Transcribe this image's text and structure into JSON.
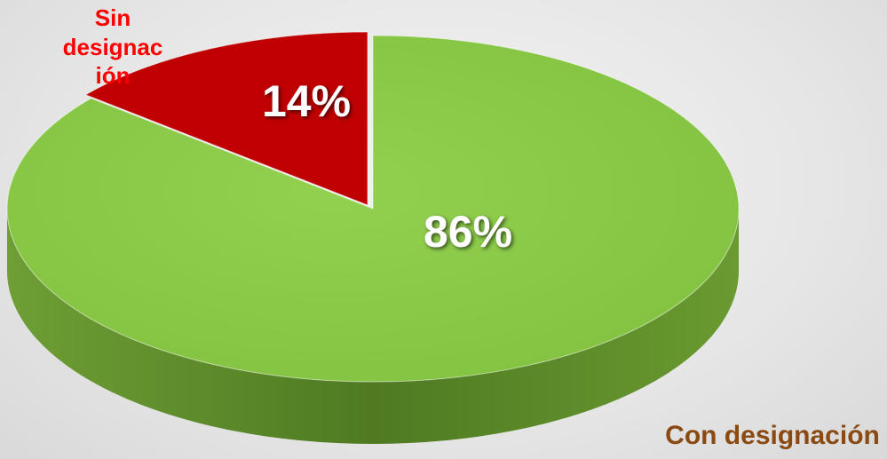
{
  "chart_data": {
    "type": "pie",
    "categories": [
      "Sin designación",
      "Con designación"
    ],
    "values": [
      14,
      86
    ],
    "value_labels": [
      "14%",
      "86%"
    ],
    "colors": [
      "#c00000",
      "#92d050"
    ]
  }
}
